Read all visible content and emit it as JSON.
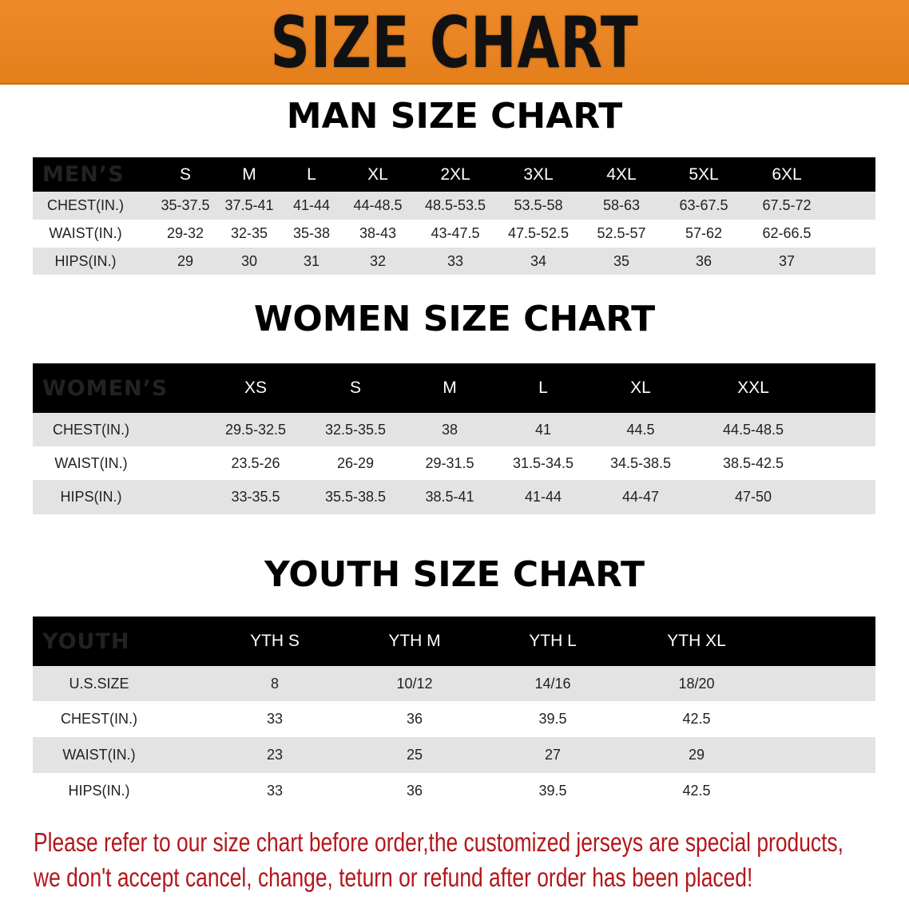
{
  "banner": {
    "title": "SIZE CHART",
    "color": "#e8841f"
  },
  "sections": [
    {
      "title": "MAN SIZE CHART",
      "header": "MEN’S",
      "sizes": [
        "S",
        "M",
        "L",
        "XL",
        "2XL",
        "3XL",
        "4XL",
        "5XL",
        "6XL"
      ],
      "rows": [
        {
          "label": "CHEST(IN.)",
          "values": [
            "35-37.5",
            "37.5-41",
            "41-44",
            "44-48.5",
            "48.5-53.5",
            "53.5-58",
            "58-63",
            "63-67.5",
            "67.5-72"
          ]
        },
        {
          "label": "WAIST(IN.)",
          "values": [
            "29-32",
            "32-35",
            "35-38",
            "38-43",
            "43-47.5",
            "47.5-52.5",
            "52.5-57",
            "57-62",
            "62-66.5"
          ]
        },
        {
          "label": "HIPS(IN.)",
          "values": [
            "29",
            "30",
            "31",
            "32",
            "33",
            "34",
            "35",
            "36",
            "37"
          ]
        }
      ]
    },
    {
      "title": "WOMEN SIZE CHART",
      "header": "WOMEN’S",
      "sizes": [
        "XS",
        "S",
        "M",
        "L",
        "XL",
        "XXL"
      ],
      "rows": [
        {
          "label": "CHEST(IN.)",
          "values": [
            "29.5-32.5",
            "32.5-35.5",
            "38",
            "41",
            "44.5",
            "44.5-48.5"
          ]
        },
        {
          "label": "WAIST(IN.)",
          "values": [
            "23.5-26",
            "26-29",
            "29-31.5",
            "31.5-34.5",
            "34.5-38.5",
            "38.5-42.5"
          ]
        },
        {
          "label": "HIPS(IN.)",
          "values": [
            "33-35.5",
            "35.5-38.5",
            "38.5-41",
            "41-44",
            "44-47",
            "47-50"
          ]
        }
      ]
    },
    {
      "title": "YOUTH SIZE CHART",
      "header": "YOUTH",
      "sizes": [
        "YTH S",
        "YTH M",
        "YTH L",
        "YTH XL"
      ],
      "rows": [
        {
          "label": "U.S.SIZE",
          "values": [
            "8",
            "10/12",
            "14/16",
            "18/20"
          ]
        },
        {
          "label": "CHEST(IN.)",
          "values": [
            "33",
            "36",
            "39.5",
            "42.5"
          ]
        },
        {
          "label": "WAIST(IN.)",
          "values": [
            "23",
            "25",
            "27",
            "29"
          ]
        },
        {
          "label": "HIPS(IN.)",
          "values": [
            "33",
            "36",
            "39.5",
            "42.5"
          ]
        }
      ]
    }
  ],
  "notice": {
    "line1": "Please refer to our size chart before order,the customized jerseys are special products,",
    "line2": "we don't accept cancel, change, teturn or refund after order has been placed!",
    "color": "#b3161b"
  }
}
